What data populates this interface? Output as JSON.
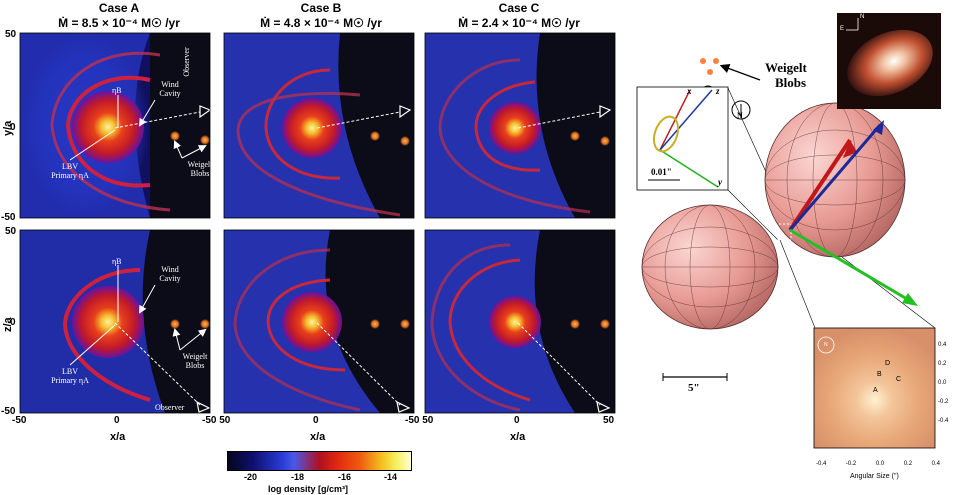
{
  "cases": [
    {
      "title": "Case A",
      "rate": "Ṁ = 8.5 × 10⁻⁴ M☉ /yr"
    },
    {
      "title": "Case B",
      "rate": "Ṁ = 4.8 × 10⁻⁴ M☉ /yr"
    },
    {
      "title": "Case C",
      "rate": "Ṁ = 2.4 × 10⁻⁴ M☉ /yr"
    }
  ],
  "axes": {
    "y_top": "y/a",
    "y_bottom": "z/a",
    "x": "x/a",
    "ticks_50": "50",
    "ticks_0": "0",
    "ticks_m50": "-50",
    "ticks_m50_50": "-50    50"
  },
  "annotations": {
    "eta_b": "ηB",
    "wind_cavity_line1": "Wind",
    "wind_cavity_line2": "Cavity",
    "observer": "Observer",
    "weigelt_line1": "Weigelt",
    "weigelt_line2": "Blobs",
    "lbv_line1": "LBV",
    "lbv_line2": "Primary ηA"
  },
  "colorbar": {
    "label": "log density  [g/cm³]",
    "ticks": [
      "-20",
      "-18",
      "-16",
      "-14"
    ]
  },
  "right": {
    "weigelt_line1": "Weigelt",
    "weigelt_line2": "Blobs",
    "inset_scale": "0.01\"",
    "scale_bar": "5\"",
    "axis_x": "x",
    "axis_y": "y",
    "axis_z": "z",
    "north": "N",
    "photo_n": "N",
    "photo_e": "E",
    "map_points": [
      "A",
      "B",
      "C",
      "D"
    ],
    "map_xlabel": "Angular Size (\")",
    "map_xticks": [
      "-0.4",
      "-0.2",
      "0.0",
      "0.2",
      "0.4"
    ],
    "map_yticks": [
      "0.4",
      "0.2",
      "0.0",
      "-0.2",
      "-0.4"
    ]
  }
}
